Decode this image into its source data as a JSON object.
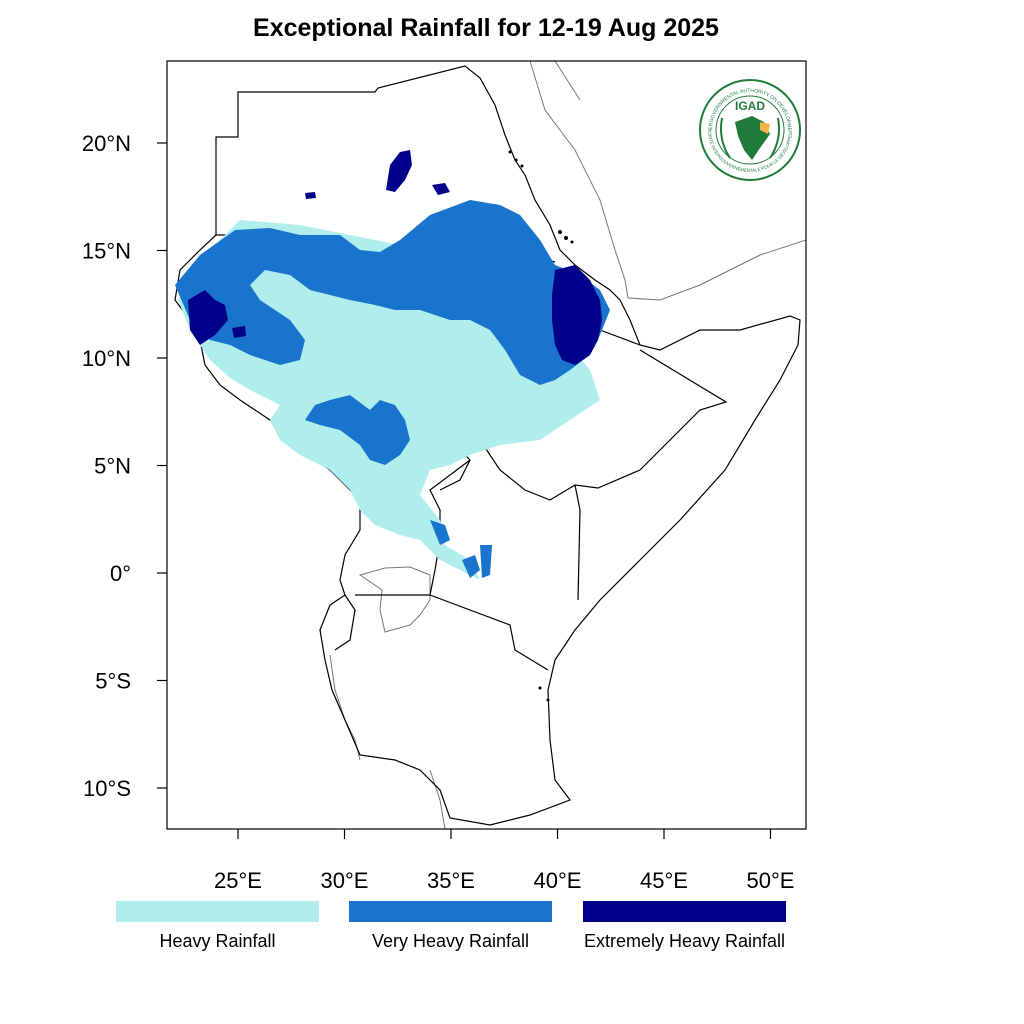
{
  "title": "Exceptional Rainfall for 12-19 Aug 2025",
  "logo": {
    "abbrev": "IGAD",
    "ring_text_top": "INTERGOVERNMENTAL AUTHORITY ON DEVELOPMENT",
    "ring_text_bottom": "AUTORITÉ INTERGOUVERNEMENTALE POUR LE DÉVELOPPEMENT",
    "color": "#1e7b3a",
    "accent": "#f0b44a"
  },
  "axes": {
    "lon_ticks": [
      {
        "value": 25,
        "label": "25°E"
      },
      {
        "value": 30,
        "label": "30°E"
      },
      {
        "value": 35,
        "label": "35°E"
      },
      {
        "value": 40,
        "label": "40°E"
      },
      {
        "value": 45,
        "label": "45°E"
      },
      {
        "value": 50,
        "label": "50°E"
      }
    ],
    "lat_ticks": [
      {
        "value": 20,
        "label": "20°N"
      },
      {
        "value": 15,
        "label": "15°N"
      },
      {
        "value": 10,
        "label": "10°N"
      },
      {
        "value": 5,
        "label": "5°N"
      },
      {
        "value": 0,
        "label": "0°"
      },
      {
        "value": -5,
        "label": "5°S"
      },
      {
        "value": -10,
        "label": "10°S"
      }
    ]
  },
  "legend": [
    {
      "label": "Heavy Rainfall",
      "color": "#b0eeee"
    },
    {
      "label": "Very Heavy Rainfall",
      "color": "#1874cd"
    },
    {
      "label": "Extremely Heavy Rainfall",
      "color": "#00008b"
    }
  ],
  "colors": {
    "heavy": "#b0eeee",
    "very_heavy": "#1874cd",
    "extreme": "#00008b",
    "border": "#000000",
    "coast_minor": "#777777"
  }
}
